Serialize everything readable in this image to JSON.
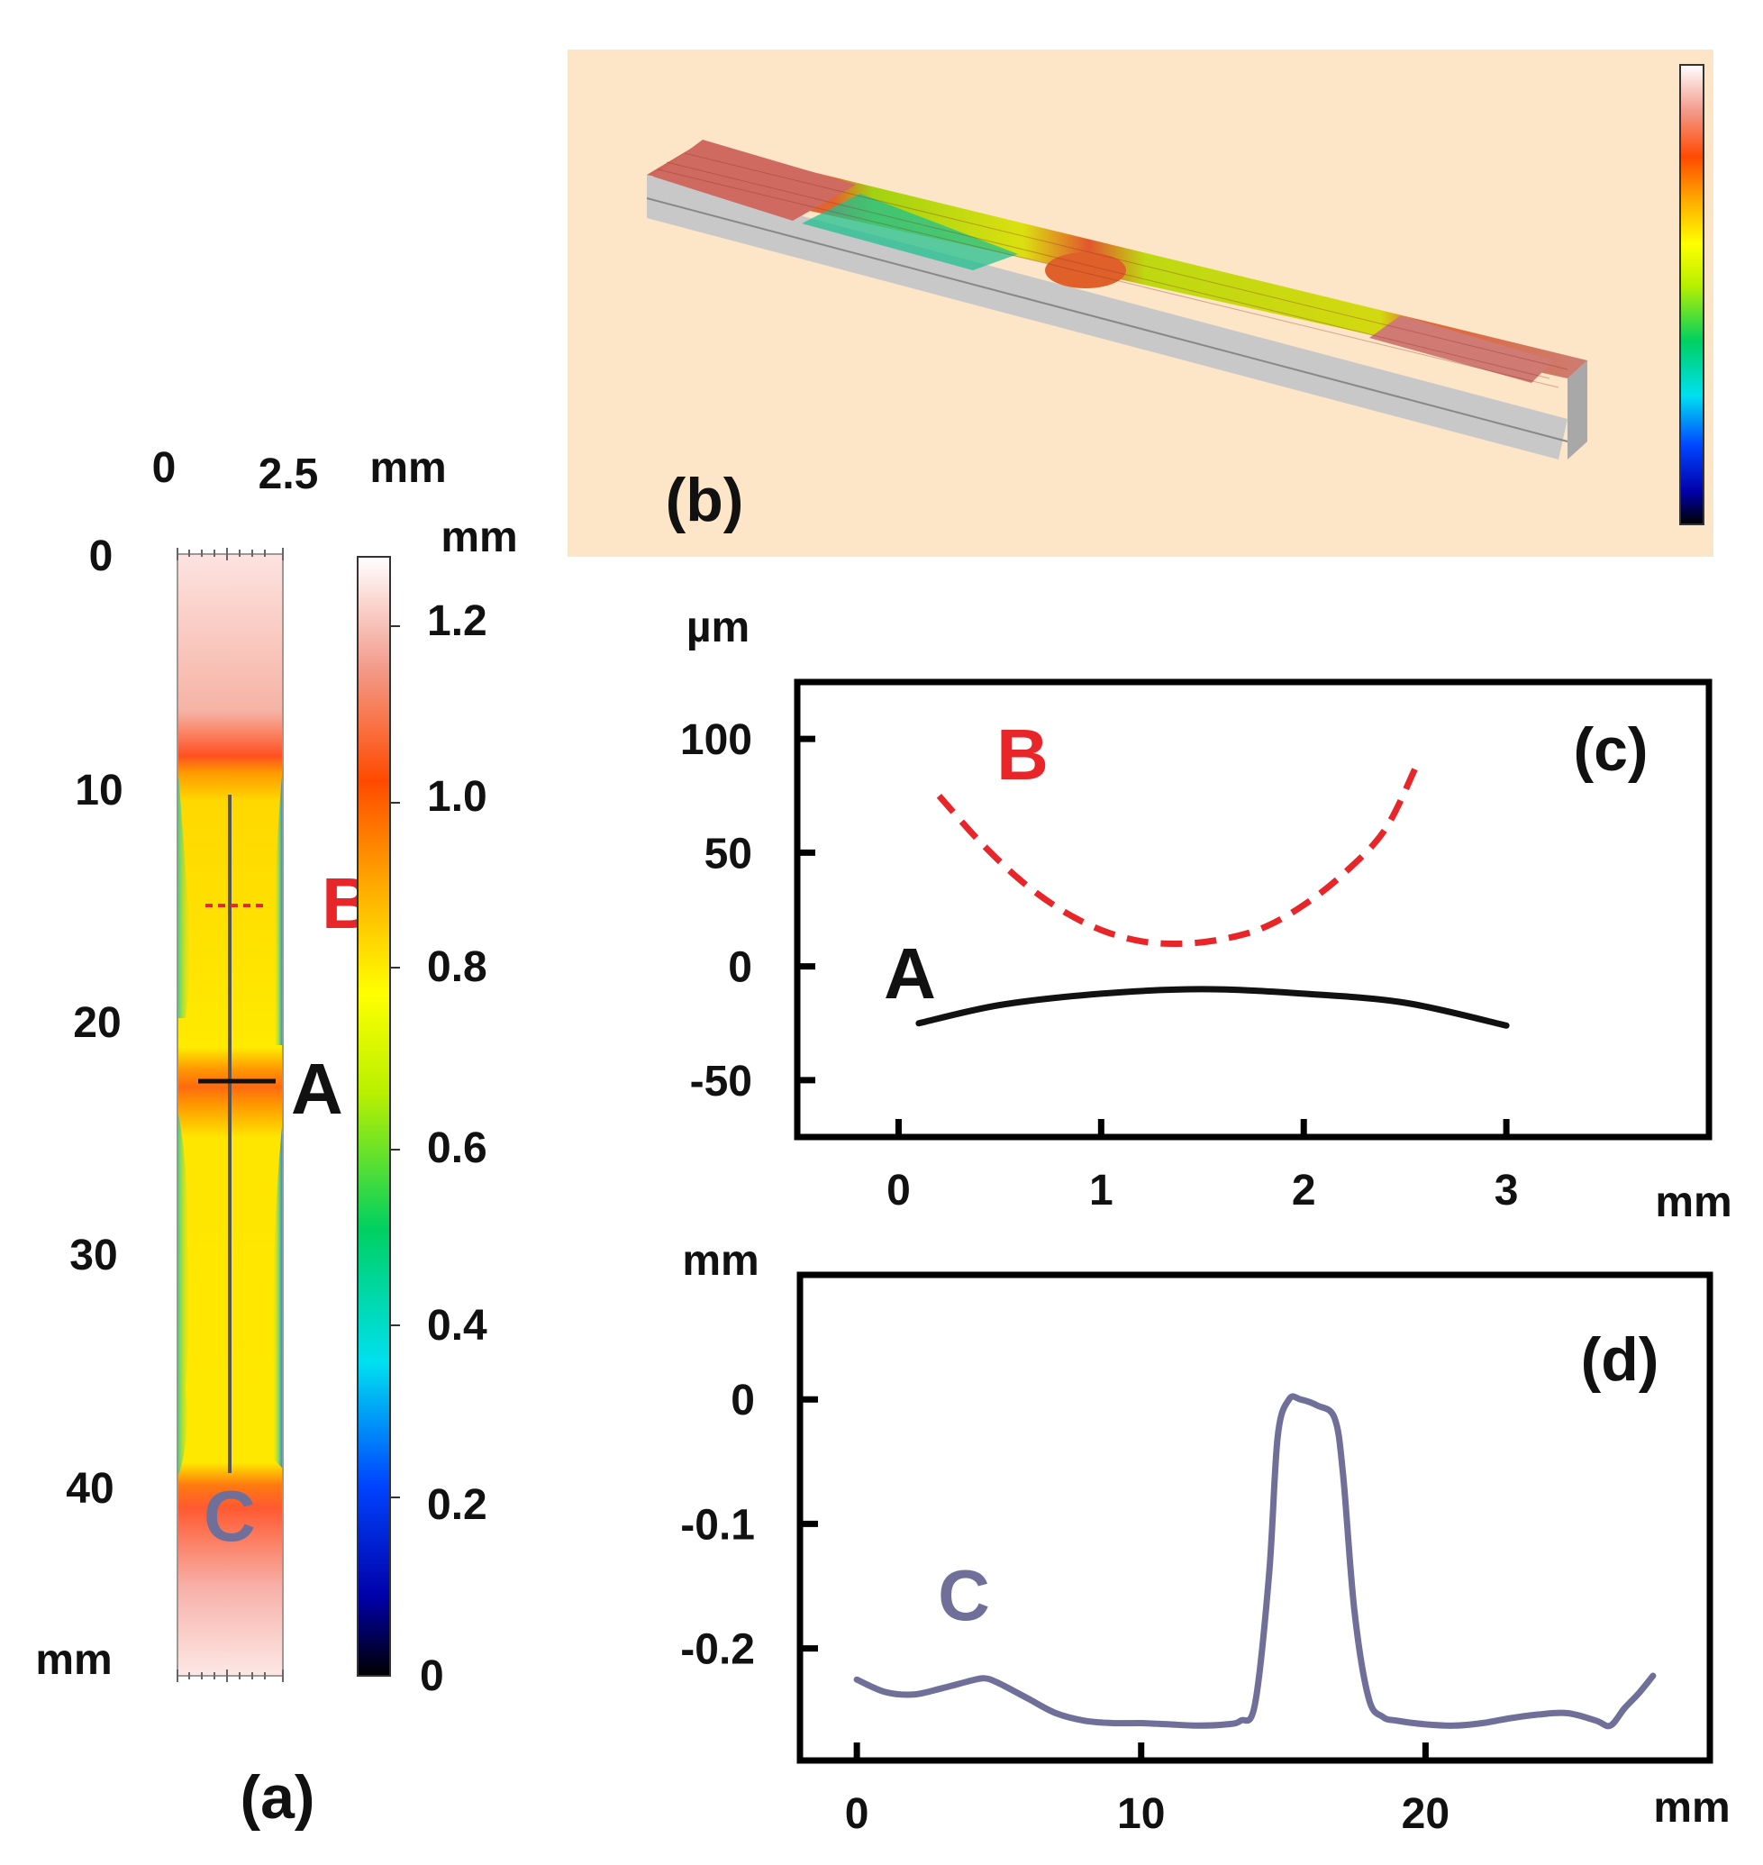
{
  "panel_a": {
    "label": "(a)",
    "x_ticks": [
      "0",
      "2.5"
    ],
    "x_unit": "mm",
    "y_ticks": [
      "0",
      "10",
      "20",
      "30",
      "40"
    ],
    "y_unit": "mm",
    "colorbar_unit": "mm",
    "colorbar_ticks": [
      "1.2",
      "1.0",
      "0.8",
      "0.6",
      "0.4",
      "0.2",
      "0"
    ],
    "marker_B": "B",
    "marker_A": "A",
    "marker_C": "C"
  },
  "panel_b": {
    "label": "(b)"
  },
  "colors": {
    "B": "#e8262a",
    "A": "#111111",
    "C": "#6f6f99",
    "panel_b_bg": "#fde5c8"
  },
  "chart_data": [
    {
      "id": "c",
      "type": "line",
      "label": "(c)",
      "ylabel": "µm",
      "xlabel": "mm",
      "xlim": [
        -0.5,
        4.0
      ],
      "ylim": [
        -75,
        125
      ],
      "x_ticks": [
        0,
        1,
        2,
        3
      ],
      "y_ticks": [
        100,
        50,
        0,
        -50
      ],
      "series": [
        {
          "name": "B",
          "style": "dashed",
          "color": "#e8262a",
          "x": [
            0.2,
            0.4,
            0.6,
            0.8,
            1.0,
            1.2,
            1.4,
            1.6,
            1.8,
            2.0,
            2.2,
            2.4,
            2.55
          ],
          "y": [
            75,
            55,
            38,
            25,
            16,
            11,
            10,
            12,
            17,
            27,
            41,
            60,
            87
          ]
        },
        {
          "name": "A",
          "style": "solid",
          "color": "#111111",
          "x": [
            0.1,
            0.5,
            1.0,
            1.5,
            2.0,
            2.5,
            3.0
          ],
          "y": [
            -25,
            -17,
            -12,
            -10,
            -12,
            -16,
            -26
          ]
        }
      ]
    },
    {
      "id": "d",
      "type": "line",
      "label": "(d)",
      "ylabel": "mm",
      "xlabel": "mm",
      "xlim": [
        -2,
        30
      ],
      "ylim": [
        -0.29,
        0.1
      ],
      "x_ticks": [
        0,
        10,
        20
      ],
      "y_ticks": [
        0,
        -0.1,
        -0.2
      ],
      "y_tick_labels": [
        "0",
        "-0.1",
        "-0.2"
      ],
      "series": [
        {
          "name": "C",
          "style": "solid",
          "color": "#6f6f99",
          "x": [
            0,
            1,
            2,
            3,
            4,
            4.5,
            5,
            6,
            7,
            8,
            9,
            10,
            11,
            12,
            13,
            13.5,
            14,
            14.5,
            14.8,
            15.2,
            15.6,
            16.2,
            16.8,
            17.1,
            17.5,
            18,
            18.5,
            19,
            20,
            21,
            22,
            23,
            24,
            25,
            26,
            26.5,
            27,
            27.5,
            28
          ],
          "y": [
            -0.225,
            -0.235,
            -0.237,
            -0.232,
            -0.226,
            -0.224,
            -0.228,
            -0.24,
            -0.252,
            -0.258,
            -0.26,
            -0.26,
            -0.261,
            -0.262,
            -0.261,
            -0.258,
            -0.245,
            -0.14,
            -0.03,
            0.0,
            0.0,
            -0.005,
            -0.015,
            -0.06,
            -0.17,
            -0.24,
            -0.255,
            -0.258,
            -0.261,
            -0.262,
            -0.26,
            -0.256,
            -0.253,
            -0.252,
            -0.258,
            -0.262,
            -0.248,
            -0.236,
            -0.222
          ]
        }
      ]
    }
  ]
}
